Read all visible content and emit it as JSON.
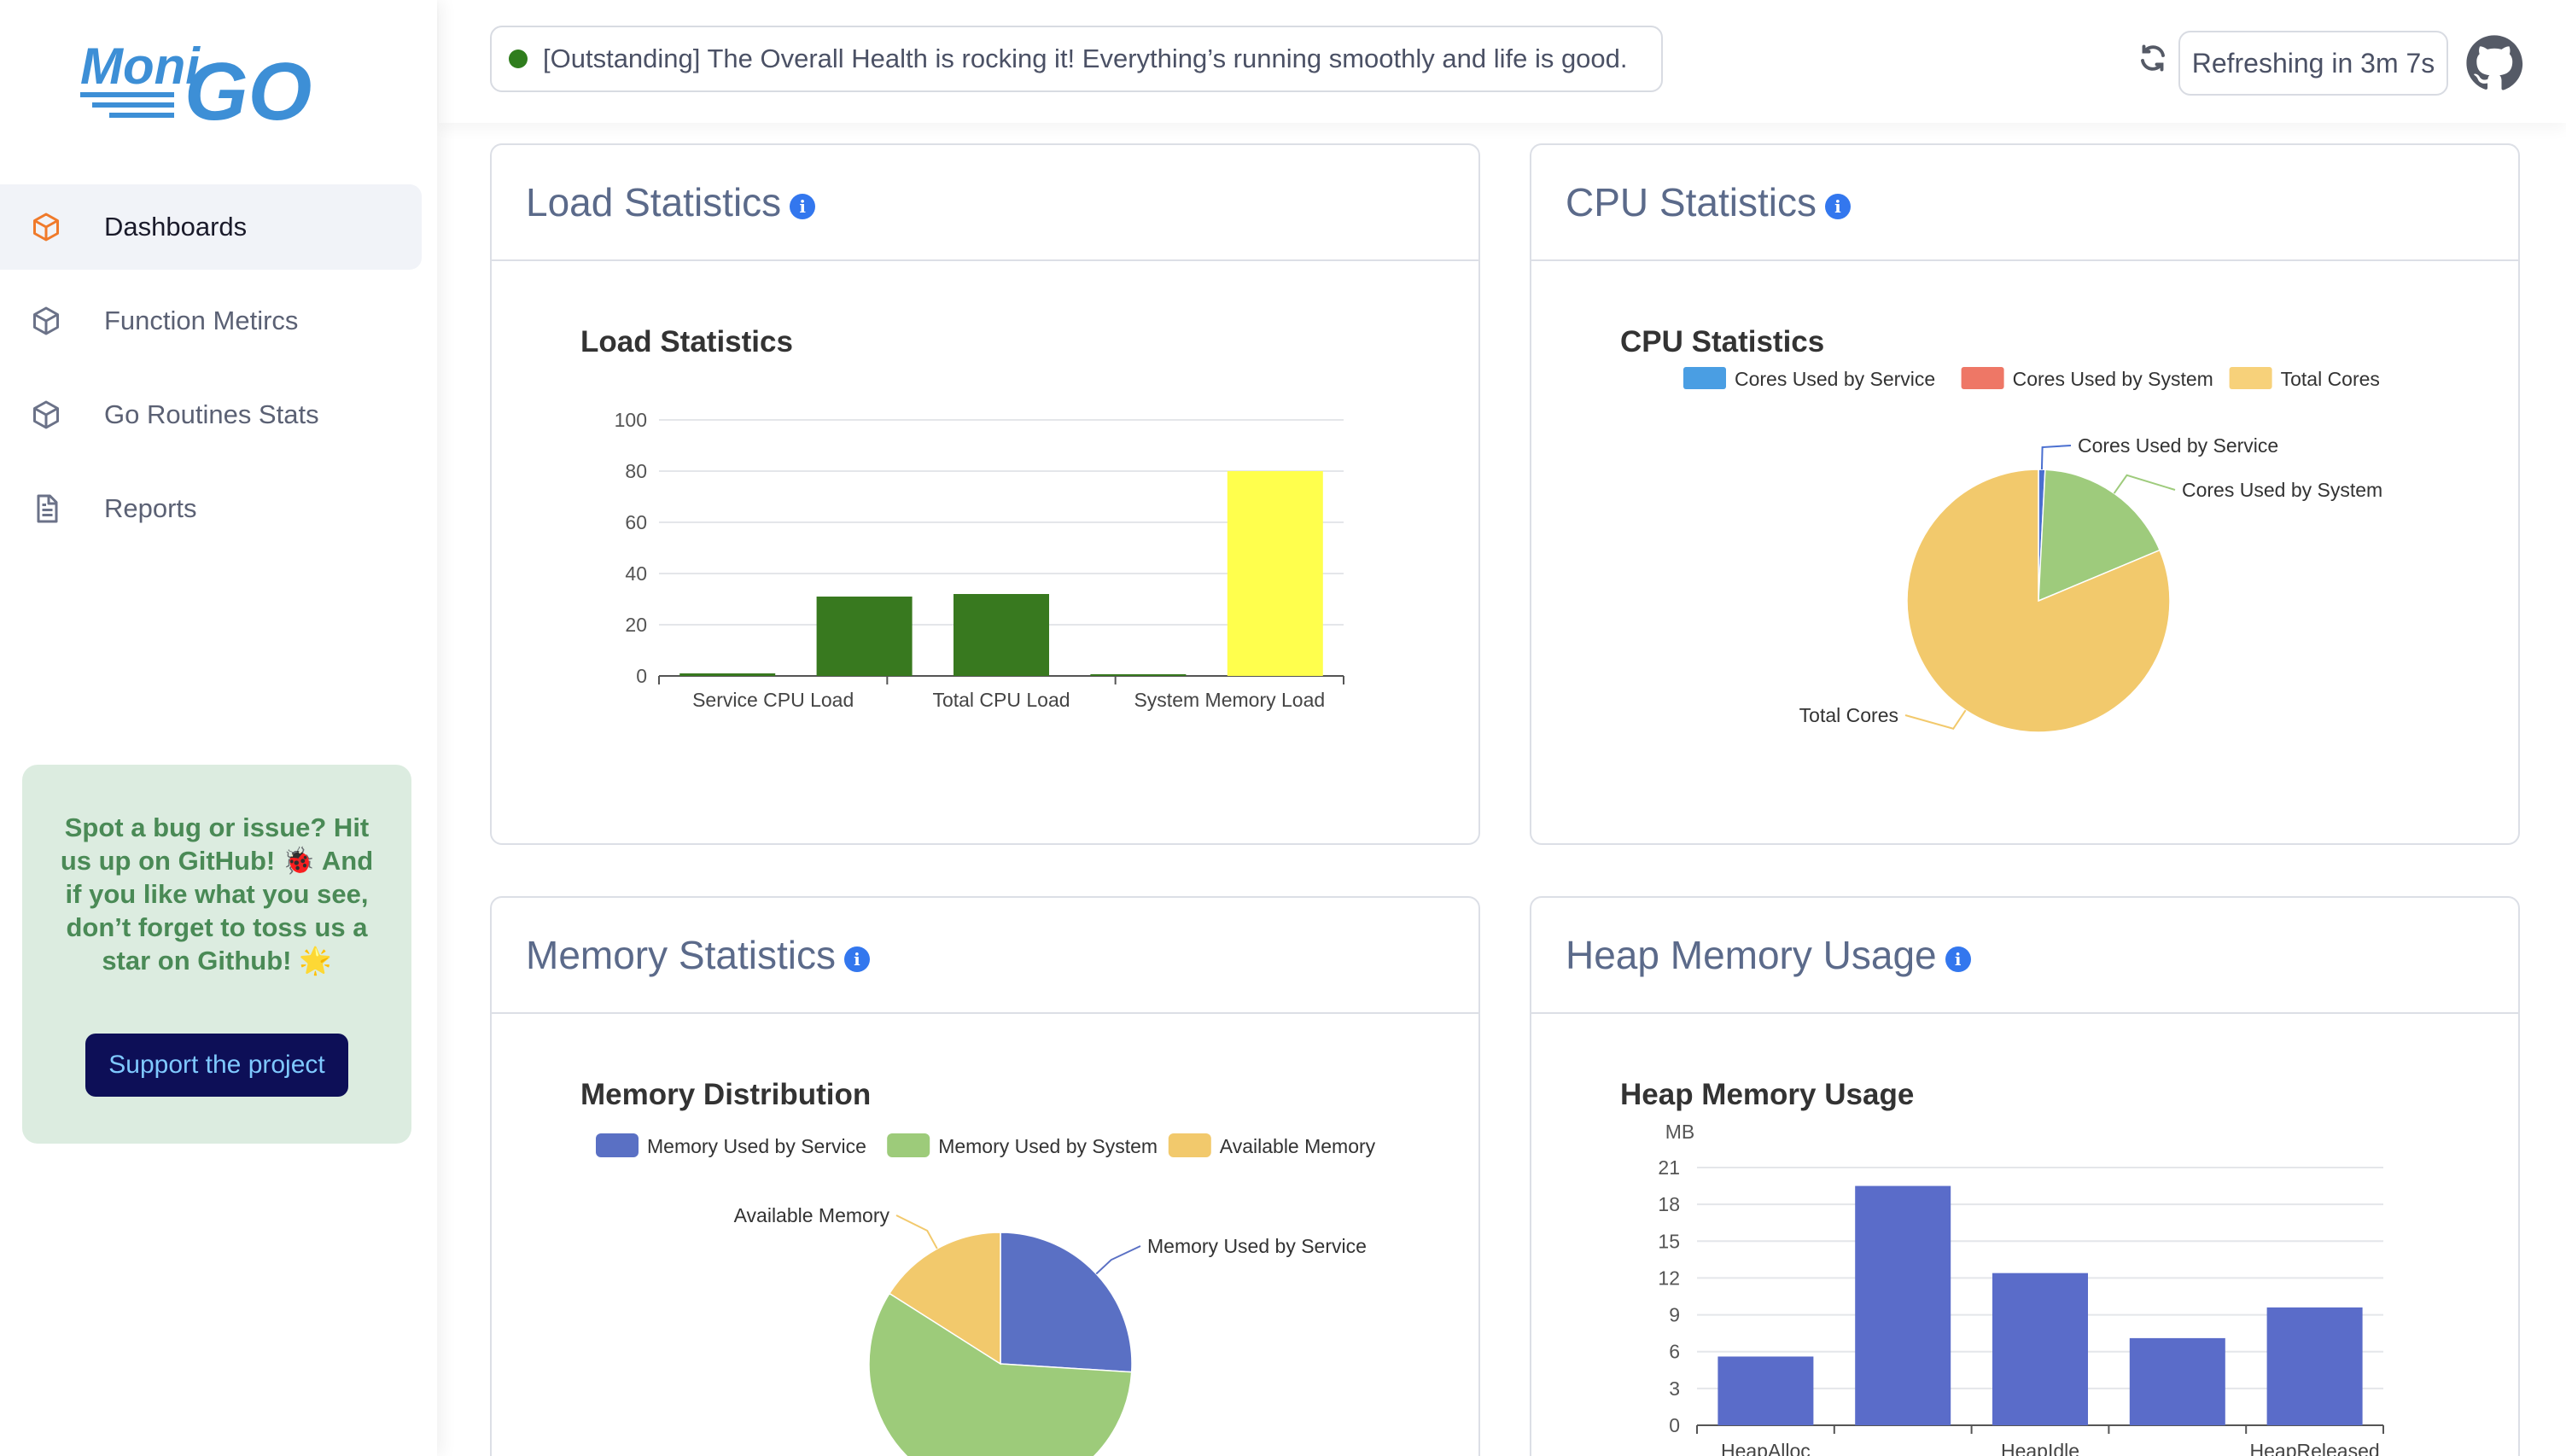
{
  "app": {
    "logo_text_left": "Moni",
    "logo_text_right": "GO"
  },
  "sidebar": {
    "items": [
      {
        "label": "Dashboards",
        "icon": "cube-icon",
        "active": true
      },
      {
        "label": "Function Metircs",
        "icon": "cube-icon",
        "active": false
      },
      {
        "label": "Go Routines Stats",
        "icon": "cube-icon",
        "active": false
      },
      {
        "label": "Reports",
        "icon": "document-icon",
        "active": false
      }
    ],
    "promo": {
      "text": "Spot a bug or issue? Hit us up on GitHub! 🐞 And if you like what you see, don’t forget to toss us a star on Github! 🌟",
      "button": "Support the project"
    }
  },
  "topbar": {
    "health": "[Outstanding] The Overall Health is rocking it! Everything’s running smoothly and life is good.",
    "health_color": "#2f7d1d",
    "refresh": "Refreshing in 3m 7s"
  },
  "cards": {
    "load": {
      "title": "Load Statistics"
    },
    "cpu": {
      "title": "CPU Statistics"
    },
    "memory": {
      "title": "Memory Statistics"
    },
    "heap": {
      "title": "Heap Memory Usage"
    }
  },
  "chart_data": [
    {
      "id": "load",
      "type": "bar",
      "title": "Load Statistics",
      "categories": [
        "Service CPU Load",
        "Total CPU Load",
        "System Memory Load"
      ],
      "axis_ticks": [
        0,
        20,
        40,
        60,
        80,
        100
      ],
      "ylim": [
        0,
        100
      ],
      "bars": [
        {
          "value": 1,
          "color": "#38791f"
        },
        {
          "value": 31,
          "color": "#38791f"
        },
        {
          "value": 32,
          "color": "#38791f"
        },
        {
          "value": 0.5,
          "color": "#38791f"
        },
        {
          "value": 80,
          "color": "#ffff4d"
        }
      ]
    },
    {
      "id": "cpu",
      "type": "pie",
      "title": "CPU Statistics",
      "legend": "top",
      "slices": [
        {
          "name": "Cores Used by Service",
          "value": 0.1,
          "color": "#4a9ee3"
        },
        {
          "name": "Cores Used by System",
          "value": 2.2,
          "color": "#ee7766"
        },
        {
          "name": "Total Cores",
          "value": 10,
          "color": "#f7d17a"
        }
      ],
      "displayed_slices": [
        {
          "name": "Cores Used by Service",
          "value": 0.1,
          "color": "#4a6fd0"
        },
        {
          "name": "Cores Used by System",
          "value": 2.2,
          "color": "#9ecb7c"
        },
        {
          "name": "Total Cores",
          "value": 10,
          "color": "#f2c96c"
        }
      ]
    },
    {
      "id": "memory",
      "type": "pie",
      "title": "Memory Distribution",
      "legend": "top",
      "slices": [
        {
          "name": "Memory Used by Service",
          "value": 26,
          "color": "#5a70c4"
        },
        {
          "name": "Memory Used by System",
          "value": 58,
          "color": "#9dcb7a"
        },
        {
          "name": "Available Memory",
          "value": 16,
          "color": "#f2c96c"
        }
      ]
    },
    {
      "id": "heap",
      "type": "bar",
      "title": "Heap Memory Usage",
      "ylabel": "MB",
      "axis_ticks": [
        0,
        3,
        6,
        9,
        12,
        15,
        18,
        21
      ],
      "ylim": [
        0,
        21
      ],
      "x_tick_labels": [
        "HeapAlloc",
        "HeapIdle",
        "HeapReleased"
      ],
      "values": [
        5.6,
        19.5,
        12.4,
        7.1,
        9.6
      ],
      "color": "#5a6cc9"
    }
  ]
}
